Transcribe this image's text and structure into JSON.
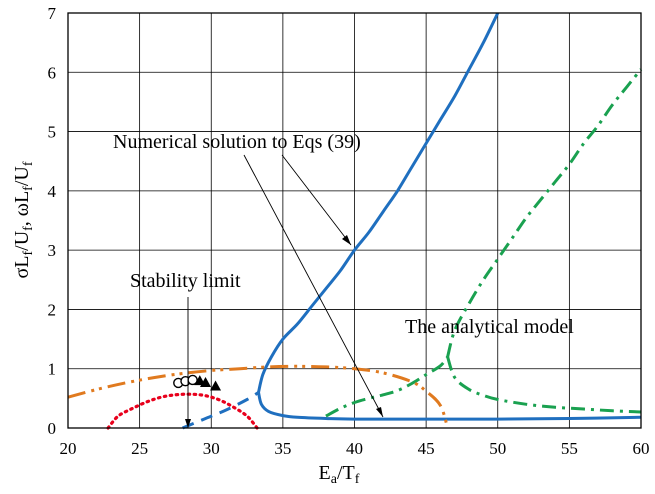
{
  "chart_data": {
    "type": "line",
    "xlabel": {
      "main": "E",
      "sub1": "a",
      "mid": "/T",
      "sub2": "f"
    },
    "ylabel": {
      "p1": "σL",
      "s1": "f",
      "p2": "/U",
      "s2": "f",
      "p3": ", ωL",
      "s3": "f",
      "p4": "/U",
      "s4": "f"
    },
    "xlim": [
      20,
      60
    ],
    "ylim": [
      0,
      7
    ],
    "x_ticks": [
      "20",
      "25",
      "30",
      "35",
      "40",
      "45",
      "50",
      "55",
      "60"
    ],
    "y_ticks": [
      "0",
      "1",
      "2",
      "3",
      "4",
      "5",
      "6",
      "7"
    ],
    "grid": true,
    "annotations": {
      "numerical": "Numerical solution to Eqs (39)",
      "stability": "Stability limit",
      "analytical": "The analytical model"
    },
    "colors": {
      "numerical": "#1f6fbf",
      "analytical": "#1aa150",
      "orange": "#e07a1f",
      "red": "#e8001c",
      "markers": "#000000"
    },
    "series": [
      {
        "style": "solid-blue",
        "x": [
          33.3,
          33.6,
          34.2,
          35.0,
          36.0,
          37.0,
          38.0,
          39.0,
          40.0,
          41.0,
          42.0,
          43.0,
          44.0,
          45.0,
          46.0,
          47.0,
          48.0,
          49.0,
          50.0
        ],
        "y": [
          0.6,
          0.9,
          1.2,
          1.5,
          1.75,
          2.05,
          2.35,
          2.65,
          3.0,
          3.3,
          3.65,
          4.0,
          4.4,
          4.8,
          5.2,
          5.6,
          6.05,
          6.5,
          7.0
        ]
      },
      {
        "style": "solid-blue",
        "x": [
          33.3,
          33.5,
          34.0,
          35.0,
          36.0,
          38.0,
          40.0,
          45.0,
          50.0,
          55.0,
          60.0
        ],
        "y": [
          0.6,
          0.4,
          0.28,
          0.21,
          0.18,
          0.16,
          0.15,
          0.15,
          0.15,
          0.16,
          0.18
        ]
      },
      {
        "style": "dashed-blue",
        "x": [
          28.0,
          29.5,
          31.0,
          32.5,
          33.3
        ],
        "y": [
          0.0,
          0.15,
          0.3,
          0.48,
          0.6
        ]
      },
      {
        "style": "dashdot-green",
        "x": [
          38.0,
          39.0,
          40.0,
          41.0,
          42.0,
          43.0,
          44.0,
          45.0,
          46.0,
          46.5
        ],
        "y": [
          0.2,
          0.33,
          0.43,
          0.5,
          0.56,
          0.63,
          0.75,
          0.9,
          1.05,
          1.2
        ]
      },
      {
        "style": "dashdot-green",
        "x": [
          46.5,
          47.0,
          48.0,
          49.0,
          50.0,
          51.0,
          52.0,
          53.0,
          54.0,
          55.0,
          56.0,
          57.0,
          58.0,
          59.0,
          60.0
        ],
        "y": [
          1.2,
          1.65,
          2.1,
          2.5,
          2.85,
          3.2,
          3.55,
          3.85,
          4.15,
          4.45,
          4.8,
          5.1,
          5.45,
          5.75,
          6.05
        ]
      },
      {
        "style": "dashdot-green",
        "x": [
          46.5,
          47.0,
          48.0,
          49.0,
          50.0,
          52.0,
          54.0,
          56.0,
          58.0,
          60.0
        ],
        "y": [
          1.2,
          0.85,
          0.65,
          0.55,
          0.48,
          0.4,
          0.35,
          0.32,
          0.29,
          0.27
        ]
      },
      {
        "style": "dashdotdot-orange",
        "x": [
          20.0,
          22.0,
          24.0,
          26.0,
          28.0,
          30.0,
          32.0,
          34.0,
          36.0,
          38.0,
          40.0,
          42.0,
          44.0,
          45.0,
          46.0,
          46.5
        ],
        "y": [
          0.52,
          0.65,
          0.76,
          0.85,
          0.92,
          0.97,
          1.0,
          1.03,
          1.04,
          1.03,
          1.0,
          0.93,
          0.78,
          0.62,
          0.38,
          0.0
        ]
      },
      {
        "style": "dotted-red",
        "x": [
          22.8,
          23.5,
          24.5,
          25.5,
          26.5,
          27.5,
          28.5,
          29.5,
          30.5,
          31.5,
          32.5,
          33.2
        ],
        "y": [
          0.0,
          0.2,
          0.33,
          0.44,
          0.52,
          0.56,
          0.57,
          0.55,
          0.48,
          0.36,
          0.2,
          0.0
        ]
      }
    ],
    "markers": [
      {
        "shape": "circle",
        "x": 27.7,
        "y": 0.76
      },
      {
        "shape": "circle",
        "x": 28.2,
        "y": 0.79
      },
      {
        "shape": "circle",
        "x": 28.7,
        "y": 0.81
      },
      {
        "shape": "triangle",
        "x": 29.2,
        "y": 0.79
      },
      {
        "shape": "triangle",
        "x": 29.6,
        "y": 0.76
      },
      {
        "shape": "triangle",
        "x": 30.3,
        "y": 0.7
      }
    ]
  }
}
